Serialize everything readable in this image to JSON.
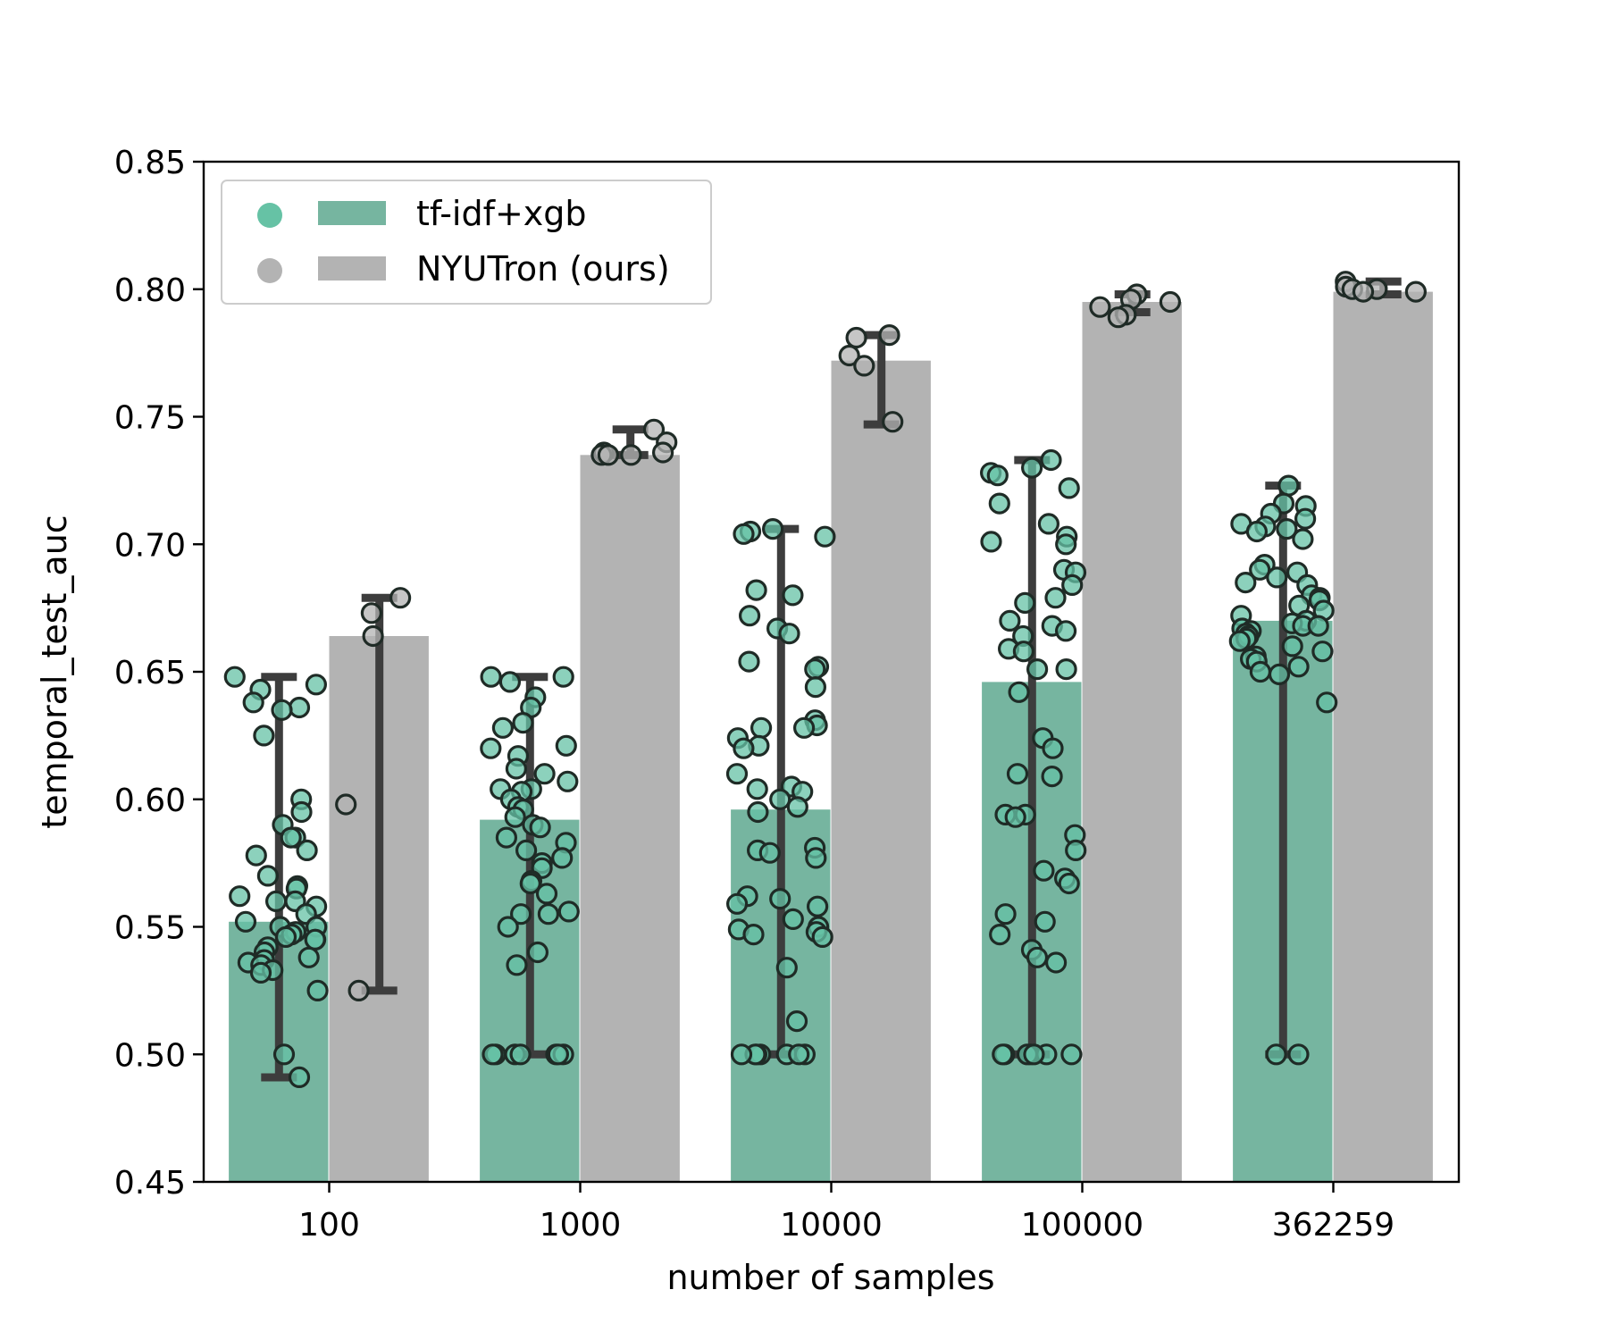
{
  "chart_data": {
    "type": "bar",
    "xlabel": "number of samples",
    "ylabel": "temporal_test_auc",
    "ylim": [
      0.45,
      0.85
    ],
    "yticks": [
      "0.45",
      "0.50",
      "0.55",
      "0.60",
      "0.65",
      "0.70",
      "0.75",
      "0.80",
      "0.85"
    ],
    "categories": [
      "100",
      "1000",
      "10000",
      "100000",
      "362259"
    ],
    "legend": {
      "placement": "upper-left"
    },
    "grid": false,
    "series": [
      {
        "name": "tf-idf+xgb",
        "color": "#76b5a0",
        "point_color": "#66c2a5",
        "values": [
          0.552,
          0.592,
          0.596,
          0.646,
          0.67
        ],
        "error_low": [
          0.491,
          0.5,
          0.5,
          0.5,
          0.5
        ],
        "error_high": [
          0.648,
          0.648,
          0.706,
          0.733,
          0.723
        ],
        "points": [
          [
            0.648,
            0.645,
            0.643,
            0.638,
            0.636,
            0.635,
            0.625,
            0.6,
            0.595,
            0.59,
            0.585,
            0.585,
            0.58,
            0.578,
            0.57,
            0.566,
            0.565,
            0.562,
            0.56,
            0.56,
            0.558,
            0.555,
            0.552,
            0.55,
            0.55,
            0.548,
            0.547,
            0.546,
            0.545,
            0.545,
            0.542,
            0.54,
            0.538,
            0.537,
            0.536,
            0.535,
            0.533,
            0.532,
            0.525,
            0.5,
            0.491
          ],
          [
            0.648,
            0.648,
            0.646,
            0.64,
            0.636,
            0.63,
            0.628,
            0.621,
            0.62,
            0.617,
            0.612,
            0.61,
            0.607,
            0.604,
            0.604,
            0.603,
            0.6,
            0.597,
            0.596,
            0.593,
            0.59,
            0.589,
            0.585,
            0.583,
            0.58,
            0.577,
            0.575,
            0.573,
            0.568,
            0.567,
            0.563,
            0.556,
            0.555,
            0.555,
            0.55,
            0.54,
            0.535,
            0.5,
            0.5,
            0.5,
            0.5,
            0.5,
            0.5,
            0.5
          ],
          [
            0.706,
            0.705,
            0.704,
            0.703,
            0.682,
            0.68,
            0.672,
            0.667,
            0.665,
            0.654,
            0.652,
            0.651,
            0.644,
            0.631,
            0.629,
            0.628,
            0.628,
            0.624,
            0.621,
            0.62,
            0.61,
            0.605,
            0.604,
            0.603,
            0.6,
            0.597,
            0.595,
            0.581,
            0.58,
            0.579,
            0.577,
            0.562,
            0.561,
            0.559,
            0.558,
            0.553,
            0.55,
            0.549,
            0.548,
            0.547,
            0.546,
            0.534,
            0.513,
            0.5,
            0.5,
            0.5,
            0.5,
            0.5,
            0.5,
            0.5
          ],
          [
            0.733,
            0.73,
            0.728,
            0.727,
            0.722,
            0.716,
            0.708,
            0.703,
            0.701,
            0.7,
            0.69,
            0.689,
            0.684,
            0.679,
            0.677,
            0.67,
            0.668,
            0.666,
            0.664,
            0.659,
            0.658,
            0.651,
            0.651,
            0.642,
            0.624,
            0.62,
            0.61,
            0.609,
            0.594,
            0.594,
            0.593,
            0.586,
            0.58,
            0.572,
            0.569,
            0.567,
            0.555,
            0.552,
            0.547,
            0.541,
            0.538,
            0.536,
            0.5,
            0.5,
            0.5,
            0.5,
            0.5,
            0.5,
            0.5
          ],
          [
            0.723,
            0.716,
            0.715,
            0.712,
            0.71,
            0.708,
            0.707,
            0.706,
            0.705,
            0.702,
            0.692,
            0.69,
            0.689,
            0.687,
            0.685,
            0.684,
            0.68,
            0.679,
            0.678,
            0.676,
            0.674,
            0.672,
            0.67,
            0.669,
            0.668,
            0.668,
            0.667,
            0.666,
            0.665,
            0.664,
            0.663,
            0.662,
            0.66,
            0.658,
            0.656,
            0.655,
            0.654,
            0.652,
            0.65,
            0.649,
            0.638,
            0.5,
            0.5
          ]
        ]
      },
      {
        "name": "NYUTron (ours)",
        "color": "#b3b3b3",
        "point_color": "#b3b3b3",
        "values": [
          0.664,
          0.735,
          0.772,
          0.795,
          0.799
        ],
        "error_low": [
          0.525,
          0.735,
          0.747,
          0.791,
          0.798
        ],
        "error_high": [
          0.679,
          0.745,
          0.782,
          0.798,
          0.803
        ],
        "points": [
          [
            0.679,
            0.673,
            0.664,
            0.598,
            0.525
          ],
          [
            0.745,
            0.74,
            0.736,
            0.736,
            0.735,
            0.735,
            0.735
          ],
          [
            0.782,
            0.781,
            0.774,
            0.77,
            0.748
          ],
          [
            0.798,
            0.796,
            0.795,
            0.793,
            0.79,
            0.789
          ],
          [
            0.803,
            0.801,
            0.8,
            0.8,
            0.799,
            0.799
          ]
        ]
      }
    ]
  }
}
